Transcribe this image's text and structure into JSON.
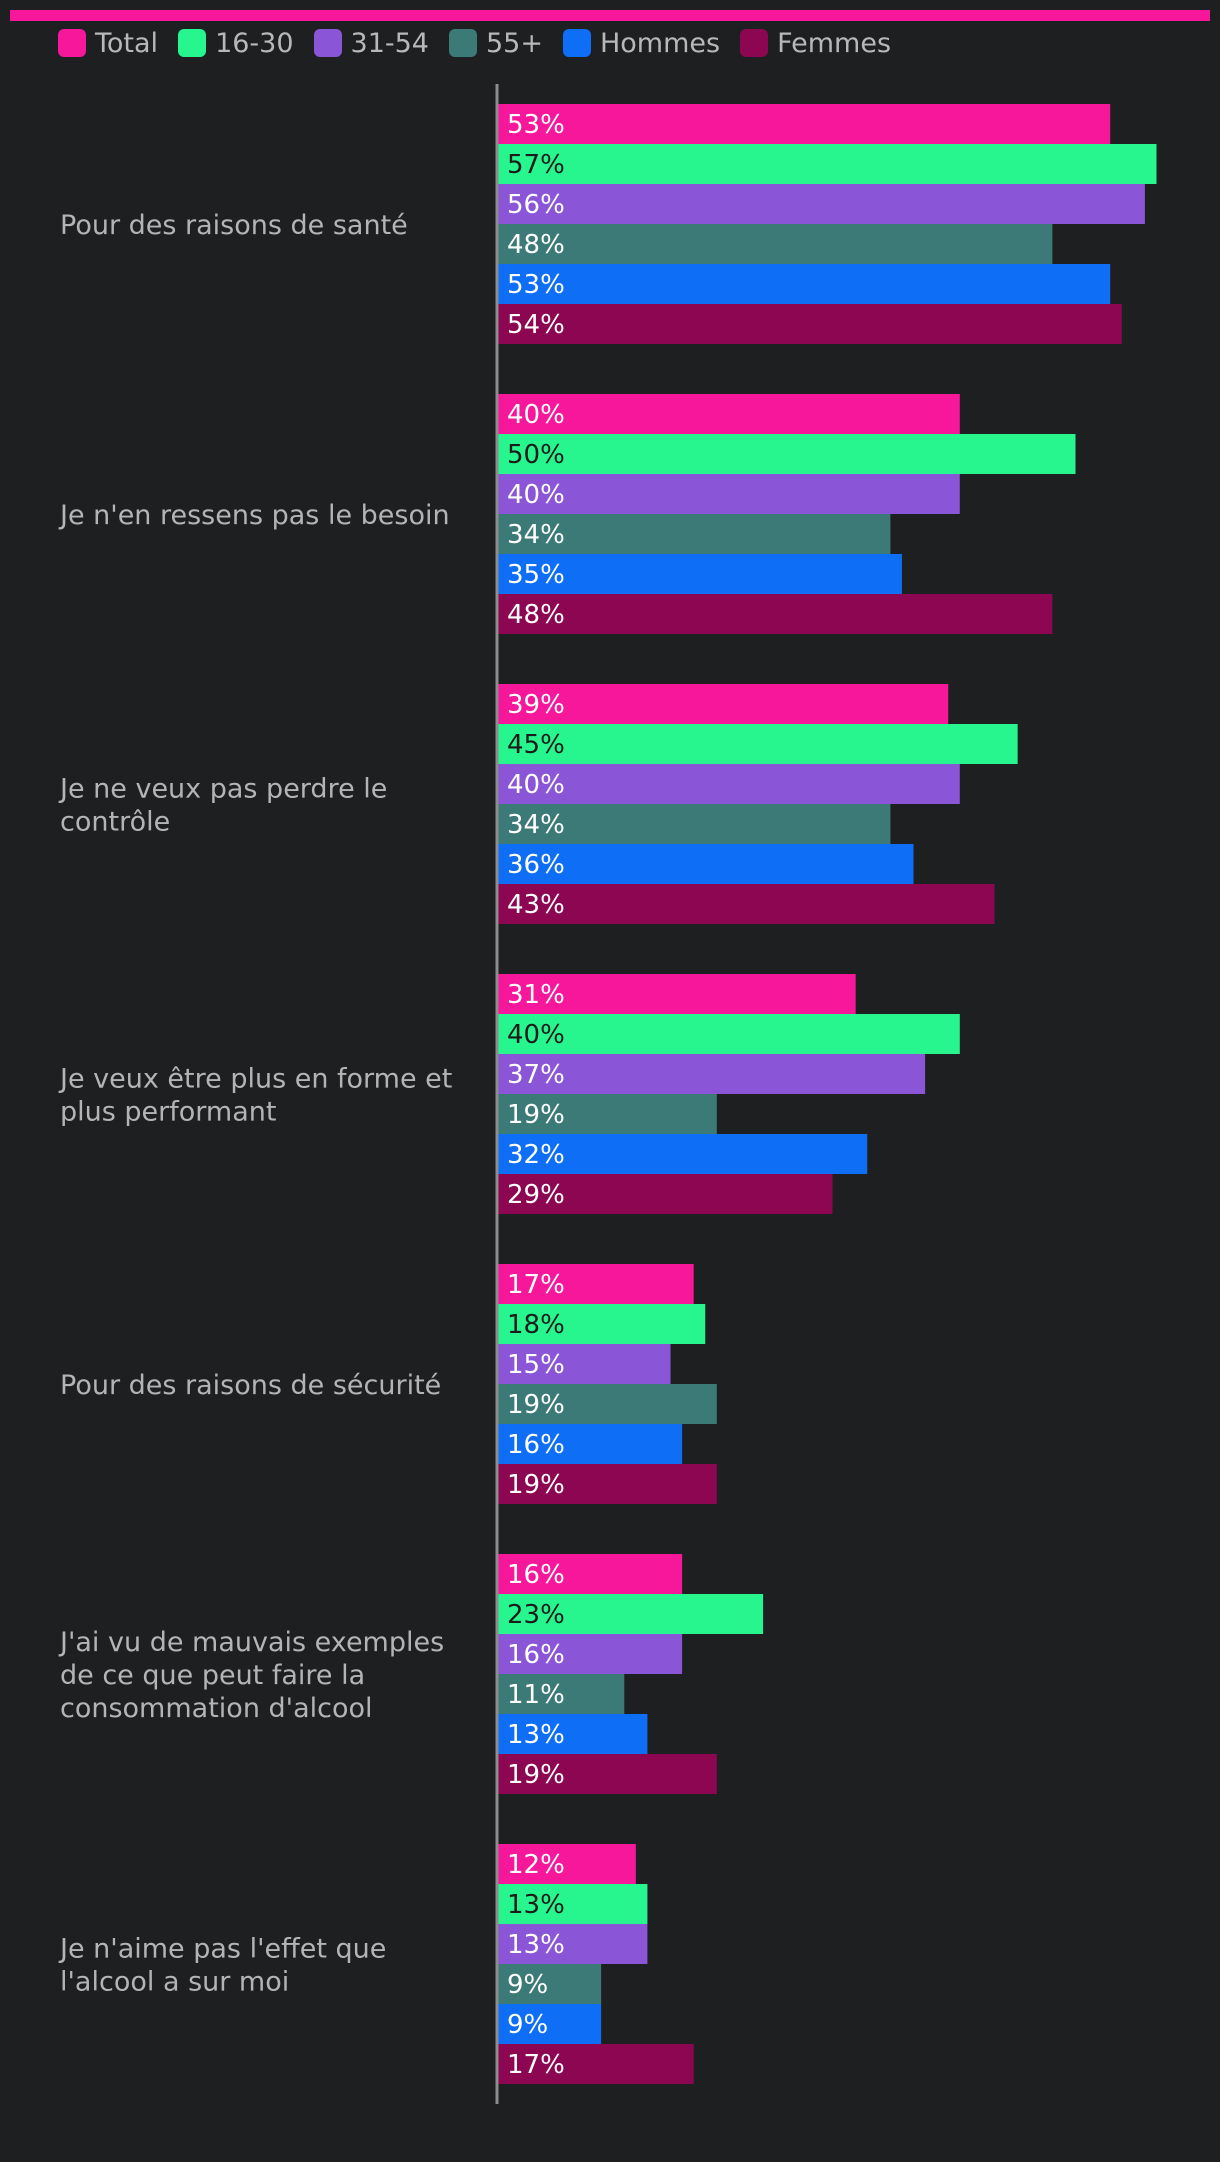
{
  "chart_data": {
    "type": "bar",
    "orientation": "horizontal",
    "legend_position": "top-left",
    "grid": false,
    "xlim": [
      0,
      60
    ],
    "value_suffix": "%",
    "categories": [
      "Pour des raisons de santé",
      "Je n'en ressens pas le besoin",
      "Je ne veux pas perdre le contrôle",
      "Je veux être plus en forme et plus performant",
      "Pour des raisons de sécurité",
      "J'ai vu de mauvais exemples de ce que peut faire la consommation d'alcool",
      "Je n'aime pas l'effet que l'alcool a sur moi"
    ],
    "series": [
      {
        "name": "Total",
        "color": "#f6179b",
        "values": [
          53,
          40,
          39,
          31,
          17,
          16,
          12
        ]
      },
      {
        "name": "16-30",
        "color": "#27f68f",
        "values": [
          57,
          50,
          45,
          40,
          18,
          23,
          13
        ]
      },
      {
        "name": "31-54",
        "color": "#8a55d6",
        "values": [
          56,
          40,
          40,
          37,
          15,
          16,
          13
        ]
      },
      {
        "name": "55+",
        "color": "#3c7a78",
        "values": [
          48,
          34,
          34,
          19,
          19,
          11,
          9
        ]
      },
      {
        "name": "Hommes",
        "color": "#0e6ef5",
        "values": [
          53,
          35,
          36,
          32,
          16,
          13,
          9
        ]
      },
      {
        "name": "Femmes",
        "color": "#8c0651",
        "values": [
          54,
          48,
          43,
          29,
          19,
          19,
          17
        ]
      }
    ]
  }
}
